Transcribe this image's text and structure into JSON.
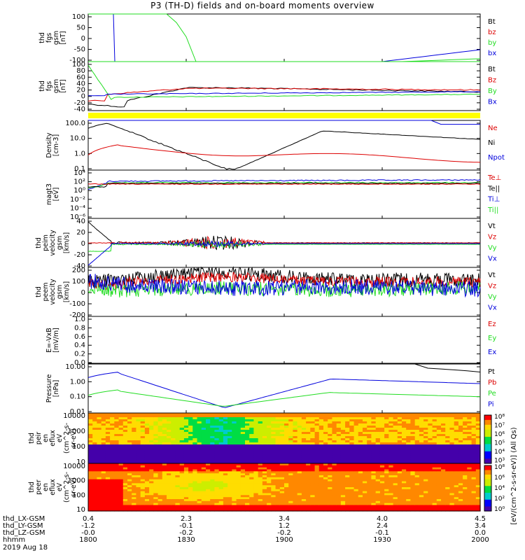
{
  "title": "P3 (TH-D) fields and on-board moments overview",
  "colors": {
    "black": "#000000",
    "red": "#dd0000",
    "green": "#22dd22",
    "blue": "#0000dd",
    "yellow": "#ffff00"
  },
  "chart_data": [
    {
      "type": "line",
      "ylabel": [
        "thd",
        "fgs",
        "gsm",
        "[nT]"
      ],
      "ylim": [
        -100,
        100
      ],
      "yticks": [
        "100",
        "50",
        "0",
        "-50",
        "-100"
      ],
      "legend": [
        {
          "name": "Bt",
          "color": "#000000"
        },
        {
          "name": "bz",
          "color": "#dd0000"
        },
        {
          "name": "by",
          "color": "#22dd22"
        },
        {
          "name": "bx",
          "color": "#0000dd"
        }
      ]
    },
    {
      "type": "line",
      "ylabel": [
        "thd",
        "fgs",
        "gsm",
        "[nT]"
      ],
      "ylim": [
        -50,
        100
      ],
      "yticks": [
        "100",
        "80",
        "60",
        "40",
        "20",
        "0",
        "-20",
        "-40"
      ],
      "legend": [
        {
          "name": "Bt",
          "color": "#000000"
        },
        {
          "name": "Bz",
          "color": "#dd0000"
        },
        {
          "name": "By",
          "color": "#22dd22"
        },
        {
          "name": "Bx",
          "color": "#0000dd"
        }
      ]
    },
    {
      "type": "line",
      "ylabel": [
        "Density",
        "[cm-3]"
      ],
      "scale": "log",
      "ylim": [
        0.1,
        200
      ],
      "yticks": [
        "100.0",
        "10.0",
        "1.0",
        "0.1"
      ],
      "legend": [
        {
          "name": "Ne",
          "color": "#dd0000"
        },
        {
          "name": "Ni",
          "color": "#000000"
        },
        {
          "name": "Npot",
          "color": "#0000dd"
        }
      ]
    },
    {
      "type": "line",
      "ylabel": [
        "magt3",
        "[eV]"
      ],
      "scale": "log",
      "yticks": [
        "10⁴",
        "10²",
        "10⁰",
        "10⁻²",
        "10⁻⁴",
        "10⁻⁶"
      ],
      "legend": [
        {
          "name": "Te⊥",
          "color": "#dd0000"
        },
        {
          "name": "Te||",
          "color": "#000000"
        },
        {
          "name": "Ti⊥",
          "color": "#0000dd"
        },
        {
          "name": "Ti||",
          "color": "#22dd22"
        }
      ]
    },
    {
      "type": "line",
      "ylabel": [
        "thd",
        "peim",
        "velocity",
        "gsm",
        "[km/s]"
      ],
      "ylim": [
        -40,
        40
      ],
      "yticks": [
        "40",
        "20",
        "0",
        "-20",
        "-40"
      ],
      "legend": [
        {
          "name": "Vt",
          "color": "#000000"
        },
        {
          "name": "Vz",
          "color": "#dd0000"
        },
        {
          "name": "Vy",
          "color": "#22dd22"
        },
        {
          "name": "Vx",
          "color": "#0000dd"
        }
      ]
    },
    {
      "type": "line",
      "ylabel": [
        "thd",
        "peem",
        "velocity",
        "gsm",
        "[km/s]"
      ],
      "ylim": [
        -200,
        200
      ],
      "yticks": [
        "200",
        "100",
        "0",
        "-100",
        "-200"
      ],
      "legend": [
        {
          "name": "Vt",
          "color": "#000000"
        },
        {
          "name": "Vz",
          "color": "#dd0000"
        },
        {
          "name": "Vy",
          "color": "#22dd22"
        },
        {
          "name": "Vx",
          "color": "#0000dd"
        }
      ]
    },
    {
      "type": "line",
      "ylabel": [
        "E=-VxB",
        "[mV/m]"
      ],
      "ylim": [
        0,
        1
      ],
      "yticks": [
        "1.0",
        "0.8",
        "0.6",
        "0.4",
        "0.2",
        "0.0"
      ],
      "legend": [
        {
          "name": "Ez",
          "color": "#dd0000"
        },
        {
          "name": "Ey",
          "color": "#22dd22"
        },
        {
          "name": "Ex",
          "color": "#0000dd"
        }
      ]
    },
    {
      "type": "line",
      "ylabel": [
        "Pressure",
        "[nPa]"
      ],
      "scale": "log",
      "ylim": [
        0.005,
        20
      ],
      "yticks": [
        "10.00",
        "1.00",
        "0.10",
        "0.01"
      ],
      "legend": [
        {
          "name": "Pt",
          "color": "#000000"
        },
        {
          "name": "Pb",
          "color": "#dd0000"
        },
        {
          "name": "Pe",
          "color": "#22dd22"
        },
        {
          "name": "Pi",
          "color": "#0000dd"
        }
      ]
    },
    {
      "type": "heatmap",
      "ylabel": [
        "thd",
        "peir",
        "en",
        "eflux",
        "eV",
        "(cm^2-s-",
        "sr-eV)"
      ],
      "yticks": [
        "10000",
        "1000",
        "100",
        "10"
      ]
    },
    {
      "type": "heatmap",
      "ylabel": [
        "thd",
        "peer",
        "en",
        "eflux",
        "eV",
        "(cm^2-s-",
        "sr-eV)"
      ],
      "yticks": [
        "10000",
        "1000",
        "100",
        "10"
      ]
    }
  ],
  "colorbar": {
    "ticks_top": [
      "10⁸",
      "10⁷",
      "10⁶",
      "10⁵",
      "10⁴",
      "10³"
    ],
    "ticks_bottom": [
      "10⁸",
      "10⁶",
      "10⁴",
      "10²",
      "10⁰"
    ],
    "label": "[eV/(cm^2-s-sr-eV)] (All Qs)"
  },
  "xaxis": {
    "rows": [
      {
        "label": "thd_LX-GSM",
        "values": [
          "0.4",
          "2.3",
          "3.4",
          "4.0",
          "4.5"
        ]
      },
      {
        "label": "thd_LY-GSM",
        "values": [
          "-1.2",
          "-0.1",
          "1.2",
          "2.4",
          "3.4"
        ]
      },
      {
        "label": "thd_LZ-GSM",
        "values": [
          "-0.0",
          "-0.2",
          "-0.2",
          "-0.1",
          "0.0"
        ]
      },
      {
        "label": "hhmm",
        "values": [
          "1800",
          "1830",
          "1900",
          "1930",
          "2000"
        ]
      }
    ],
    "date": "2019 Aug 18"
  }
}
